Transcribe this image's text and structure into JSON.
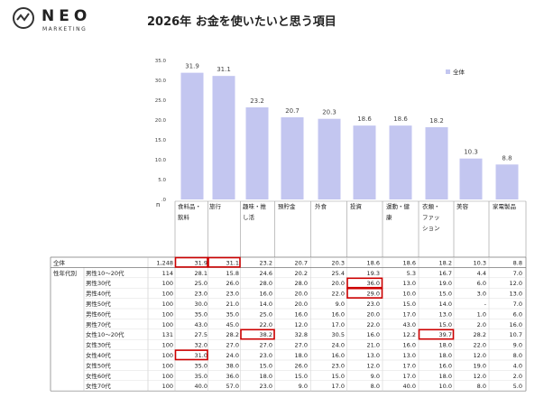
{
  "brand": {
    "name": "NEO",
    "sub": "MARKETING"
  },
  "title": "2026年 お金を使いたいと思う項目",
  "chart_data": {
    "type": "bar",
    "categories": [
      "食料品・飲料",
      "旅行",
      "趣味・推し活",
      "預貯金",
      "外食",
      "投資",
      "運動・健康",
      "衣類・ファッション",
      "美容",
      "家電製品"
    ],
    "category_lines": [
      [
        "食料品・",
        "飲料"
      ],
      [
        "旅行"
      ],
      [
        "趣味・推",
        "し活"
      ],
      [
        "預貯金"
      ],
      [
        "外食"
      ],
      [
        "投資"
      ],
      [
        "運動・健",
        "康"
      ],
      [
        "衣類・",
        "ファッ",
        "ション"
      ],
      [
        "美容"
      ],
      [
        "家電製品"
      ]
    ],
    "series": [
      {
        "name": "全体",
        "values": [
          31.9,
          31.1,
          23.2,
          20.7,
          20.3,
          18.6,
          18.6,
          18.2,
          10.3,
          8.8
        ]
      }
    ],
    "yticks": [
      "35.0",
      "30.0",
      "25.0",
      "20.0",
      "15.0",
      "10.0",
      "5.0",
      ".0"
    ],
    "ylim": [
      0,
      35
    ],
    "bar_color": "#c3c6f0",
    "legend_position": "top-right"
  },
  "table": {
    "n_label": "n",
    "group_label": "性年代別",
    "rows": [
      {
        "label": "全体",
        "n": "1,248",
        "values": [
          "31.9",
          "31.1",
          "23.2",
          "20.7",
          "20.3",
          "18.6",
          "18.6",
          "18.2",
          "10.3",
          "8.8"
        ]
      },
      {
        "label": "男性10～20代",
        "n": "114",
        "values": [
          "28.1",
          "15.8",
          "24.6",
          "20.2",
          "25.4",
          "19.3",
          "5.3",
          "16.7",
          "4.4",
          "7.0"
        ]
      },
      {
        "label": "男性30代",
        "n": "100",
        "values": [
          "25.0",
          "26.0",
          "28.0",
          "28.0",
          "20.0",
          "36.0",
          "13.0",
          "19.0",
          "6.0",
          "12.0"
        ]
      },
      {
        "label": "男性40代",
        "n": "100",
        "values": [
          "23.0",
          "23.0",
          "16.0",
          "20.0",
          "22.0",
          "29.0",
          "10.0",
          "15.0",
          "3.0",
          "13.0"
        ]
      },
      {
        "label": "男性50代",
        "n": "100",
        "values": [
          "30.0",
          "21.0",
          "14.0",
          "20.0",
          "9.0",
          "23.0",
          "15.0",
          "14.0",
          "-",
          "7.0"
        ]
      },
      {
        "label": "男性60代",
        "n": "100",
        "values": [
          "35.0",
          "35.0",
          "25.0",
          "16.0",
          "16.0",
          "20.0",
          "17.0",
          "13.0",
          "1.0",
          "6.0"
        ]
      },
      {
        "label": "男性70代",
        "n": "100",
        "values": [
          "43.0",
          "45.0",
          "22.0",
          "12.0",
          "17.0",
          "22.0",
          "43.0",
          "15.0",
          "2.0",
          "16.0"
        ]
      },
      {
        "label": "女性10～20代",
        "n": "131",
        "values": [
          "27.5",
          "28.2",
          "38.2",
          "32.8",
          "30.5",
          "16.0",
          "12.2",
          "39.7",
          "28.2",
          "10.7"
        ]
      },
      {
        "label": "女性30代",
        "n": "100",
        "values": [
          "32.0",
          "27.0",
          "27.0",
          "27.0",
          "24.0",
          "21.0",
          "16.0",
          "18.0",
          "22.0",
          "9.0"
        ]
      },
      {
        "label": "女性40代",
        "n": "100",
        "values": [
          "31.0",
          "24.0",
          "23.0",
          "18.0",
          "16.0",
          "13.0",
          "13.0",
          "18.0",
          "12.0",
          "8.0"
        ]
      },
      {
        "label": "女性50代",
        "n": "100",
        "values": [
          "35.0",
          "38.0",
          "15.0",
          "26.0",
          "23.0",
          "12.0",
          "17.0",
          "16.0",
          "19.0",
          "4.0"
        ]
      },
      {
        "label": "女性60代",
        "n": "100",
        "values": [
          "35.0",
          "36.0",
          "18.0",
          "15.0",
          "15.0",
          "9.0",
          "17.0",
          "18.0",
          "12.0",
          "2.0"
        ]
      },
      {
        "label": "女性70代",
        "n": "100",
        "values": [
          "40.0",
          "57.0",
          "23.0",
          "9.0",
          "17.0",
          "8.0",
          "40.0",
          "10.0",
          "8.0",
          "5.0"
        ]
      }
    ],
    "highlights": [
      [
        0,
        0
      ],
      [
        0,
        1
      ],
      [
        2,
        5
      ],
      [
        3,
        5
      ],
      [
        7,
        2
      ],
      [
        7,
        7
      ],
      [
        9,
        0
      ]
    ],
    "highlight_color": "#cc0000"
  }
}
